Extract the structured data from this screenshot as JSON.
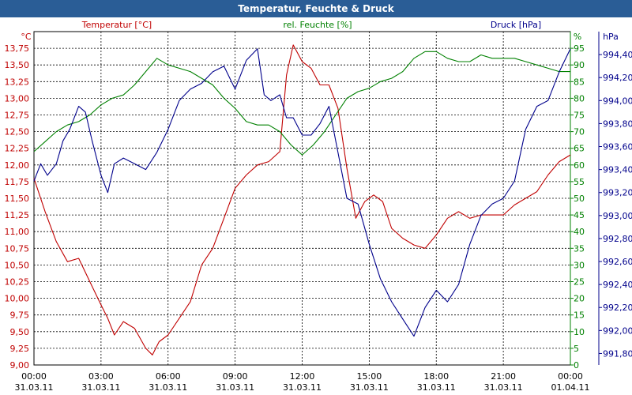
{
  "window": {
    "title": "Temperatur, Feuchte & Druck"
  },
  "colors": {
    "temperature": "#c00000",
    "humidity": "#008000",
    "pressure": "#00008b",
    "title_bg": "#2a5d96",
    "grid": "#000000"
  },
  "chart_data": {
    "type": "line",
    "title": "Temperatur, Feuchte & Druck",
    "grid": true,
    "x_ticks": [
      {
        "time": "00:00",
        "date": "31.03.11"
      },
      {
        "time": "03:00",
        "date": "31.03.11"
      },
      {
        "time": "06:00",
        "date": "31.03.11"
      },
      {
        "time": "09:00",
        "date": "31.03.11"
      },
      {
        "time": "12:00",
        "date": "31.03.11"
      },
      {
        "time": "15:00",
        "date": "31.03.11"
      },
      {
        "time": "18:00",
        "date": "31.03.11"
      },
      {
        "time": "21:00",
        "date": "31.03.11"
      },
      {
        "time": "00:00",
        "date": "01.04.11"
      }
    ],
    "axes": {
      "temperature": {
        "label": "Temperatur [°C]",
        "unit": "°C",
        "range": [
          9.0,
          14.0
        ],
        "ticks": [
          "9,00",
          "9,25",
          "9,50",
          "9,75",
          "10,00",
          "10,25",
          "10,50",
          "10,75",
          "11,00",
          "11,25",
          "11,50",
          "11,75",
          "12,00",
          "12,25",
          "12,50",
          "12,75",
          "13,00",
          "13,25",
          "13,50",
          "13,75"
        ]
      },
      "humidity": {
        "label": "rel. Feuchte [%]",
        "unit": "%",
        "range": [
          0,
          100
        ],
        "ticks": [
          "0",
          "5",
          "10",
          "15",
          "20",
          "25",
          "30",
          "35",
          "40",
          "45",
          "50",
          "55",
          "60",
          "65",
          "70",
          "75",
          "80",
          "85",
          "90",
          "95"
        ]
      },
      "pressure": {
        "label": "Druck [hPa]",
        "unit": "hPa",
        "range": [
          991.7,
          994.6
        ],
        "ticks": [
          "991,80",
          "992,00",
          "992,20",
          "992,40",
          "992,60",
          "992,80",
          "993,00",
          "993,20",
          "993,40",
          "993,60",
          "993,80",
          "994,00",
          "994,20",
          "994,40"
        ]
      }
    },
    "series": [
      {
        "name": "Temperatur [°C]",
        "axis": "temperature",
        "color": "#c00000",
        "x": [
          0,
          0.5,
          1,
          1.5,
          2,
          2.5,
          3,
          3.3,
          3.6,
          4,
          4.5,
          5,
          5.3,
          5.6,
          6,
          6.5,
          7,
          7.5,
          8,
          8.5,
          9,
          9.5,
          10,
          10.5,
          11,
          11.3,
          11.6,
          12,
          12.4,
          12.8,
          13.2,
          13.6,
          14,
          14.4,
          14.8,
          15.2,
          15.6,
          16,
          16.5,
          17,
          17.5,
          18,
          18.5,
          19,
          19.5,
          20,
          20.5,
          21,
          21.5,
          22,
          22.5,
          23,
          23.5,
          24
        ],
        "values": [
          11.8,
          11.3,
          10.85,
          10.55,
          10.6,
          10.25,
          9.9,
          9.7,
          9.45,
          9.65,
          9.55,
          9.25,
          9.15,
          9.35,
          9.45,
          9.7,
          9.95,
          10.5,
          10.75,
          11.2,
          11.65,
          11.85,
          12.0,
          12.05,
          12.2,
          13.35,
          13.8,
          13.55,
          13.45,
          13.2,
          13.2,
          12.85,
          11.95,
          11.2,
          11.45,
          11.55,
          11.45,
          11.05,
          10.9,
          10.8,
          10.75,
          10.95,
          11.2,
          11.3,
          11.2,
          11.25,
          11.25,
          11.25,
          11.4,
          11.5,
          11.6,
          11.85,
          12.05,
          12.15
        ]
      },
      {
        "name": "rel. Feuchte [%]",
        "axis": "humidity",
        "color": "#008000",
        "x": [
          0,
          0.5,
          1,
          1.5,
          2,
          2.5,
          3,
          3.5,
          4,
          4.5,
          5,
          5.5,
          6,
          6.5,
          7,
          7.5,
          8,
          8.5,
          9,
          9.5,
          10,
          10.5,
          11,
          11.5,
          12,
          12.5,
          13,
          13.5,
          14,
          14.5,
          15,
          15.5,
          16,
          16.5,
          17,
          17.5,
          18,
          18.5,
          19,
          19.5,
          20,
          20.5,
          21,
          21.5,
          22,
          22.5,
          23,
          23.5,
          24
        ],
        "values": [
          64,
          67,
          70,
          72,
          73,
          75,
          78,
          80,
          81,
          84,
          88,
          92,
          90,
          89,
          88,
          86,
          84,
          80,
          77,
          73,
          72,
          72,
          70,
          66,
          63,
          66,
          70,
          75,
          80,
          82,
          83,
          85,
          86,
          88,
          92,
          94,
          94,
          92,
          91,
          91,
          93,
          92,
          92,
          92,
          91,
          90,
          89,
          88,
          88
        ]
      },
      {
        "name": "Druck [hPa]",
        "axis": "pressure",
        "color": "#00008b",
        "x": [
          0,
          0.3,
          0.6,
          1,
          1.3,
          1.6,
          2,
          2.3,
          2.6,
          3,
          3.3,
          3.6,
          4,
          4.5,
          5,
          5.5,
          6,
          6.5,
          7,
          7.5,
          8,
          8.5,
          9,
          9.5,
          10,
          10.3,
          10.6,
          11,
          11.3,
          11.6,
          12,
          12.4,
          12.8,
          13.2,
          13.6,
          14,
          14.5,
          15,
          15.5,
          16,
          16.5,
          17,
          17.5,
          18,
          18.5,
          19,
          19.5,
          20,
          20.5,
          21,
          21.5,
          22,
          22.5,
          23,
          23.5,
          24
        ],
        "values": [
          993.3,
          993.45,
          993.35,
          993.45,
          993.65,
          993.75,
          993.95,
          993.9,
          993.65,
          993.35,
          993.2,
          993.45,
          993.5,
          993.45,
          993.4,
          993.55,
          993.75,
          994.0,
          994.1,
          994.15,
          994.25,
          994.3,
          994.1,
          994.35,
          994.45,
          994.05,
          994.0,
          994.05,
          993.85,
          993.85,
          993.7,
          993.7,
          993.8,
          993.95,
          993.55,
          993.15,
          993.1,
          992.75,
          992.45,
          992.25,
          992.1,
          991.95,
          992.2,
          992.35,
          992.25,
          992.4,
          992.75,
          993.0,
          993.1,
          993.15,
          993.3,
          993.75,
          993.95,
          994.0,
          994.25,
          994.45
        ]
      }
    ]
  }
}
